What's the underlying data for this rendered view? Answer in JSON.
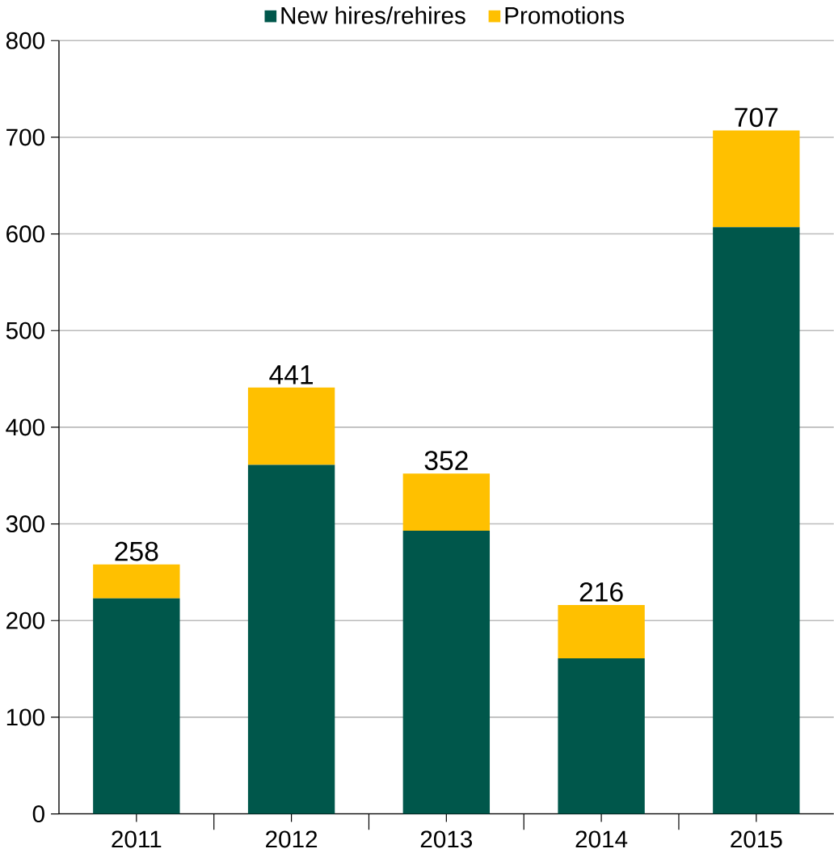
{
  "chart_data": {
    "type": "bar",
    "stacked": true,
    "categories": [
      "2011",
      "2012",
      "2013",
      "2014",
      "2015"
    ],
    "series": [
      {
        "name": "New hires/rehires",
        "color": "#00574b",
        "values": [
          223,
          361,
          293,
          161,
          607
        ]
      },
      {
        "name": "Promotions",
        "color": "#ffc000",
        "values": [
          35,
          80,
          59,
          55,
          100
        ]
      }
    ],
    "totals": [
      "258",
      "441",
      "352",
      "216",
      "707"
    ],
    "ylim": [
      0,
      800
    ],
    "yticks": [
      0,
      100,
      200,
      300,
      400,
      500,
      600,
      700,
      800
    ],
    "grid": "y",
    "legend": "top"
  }
}
